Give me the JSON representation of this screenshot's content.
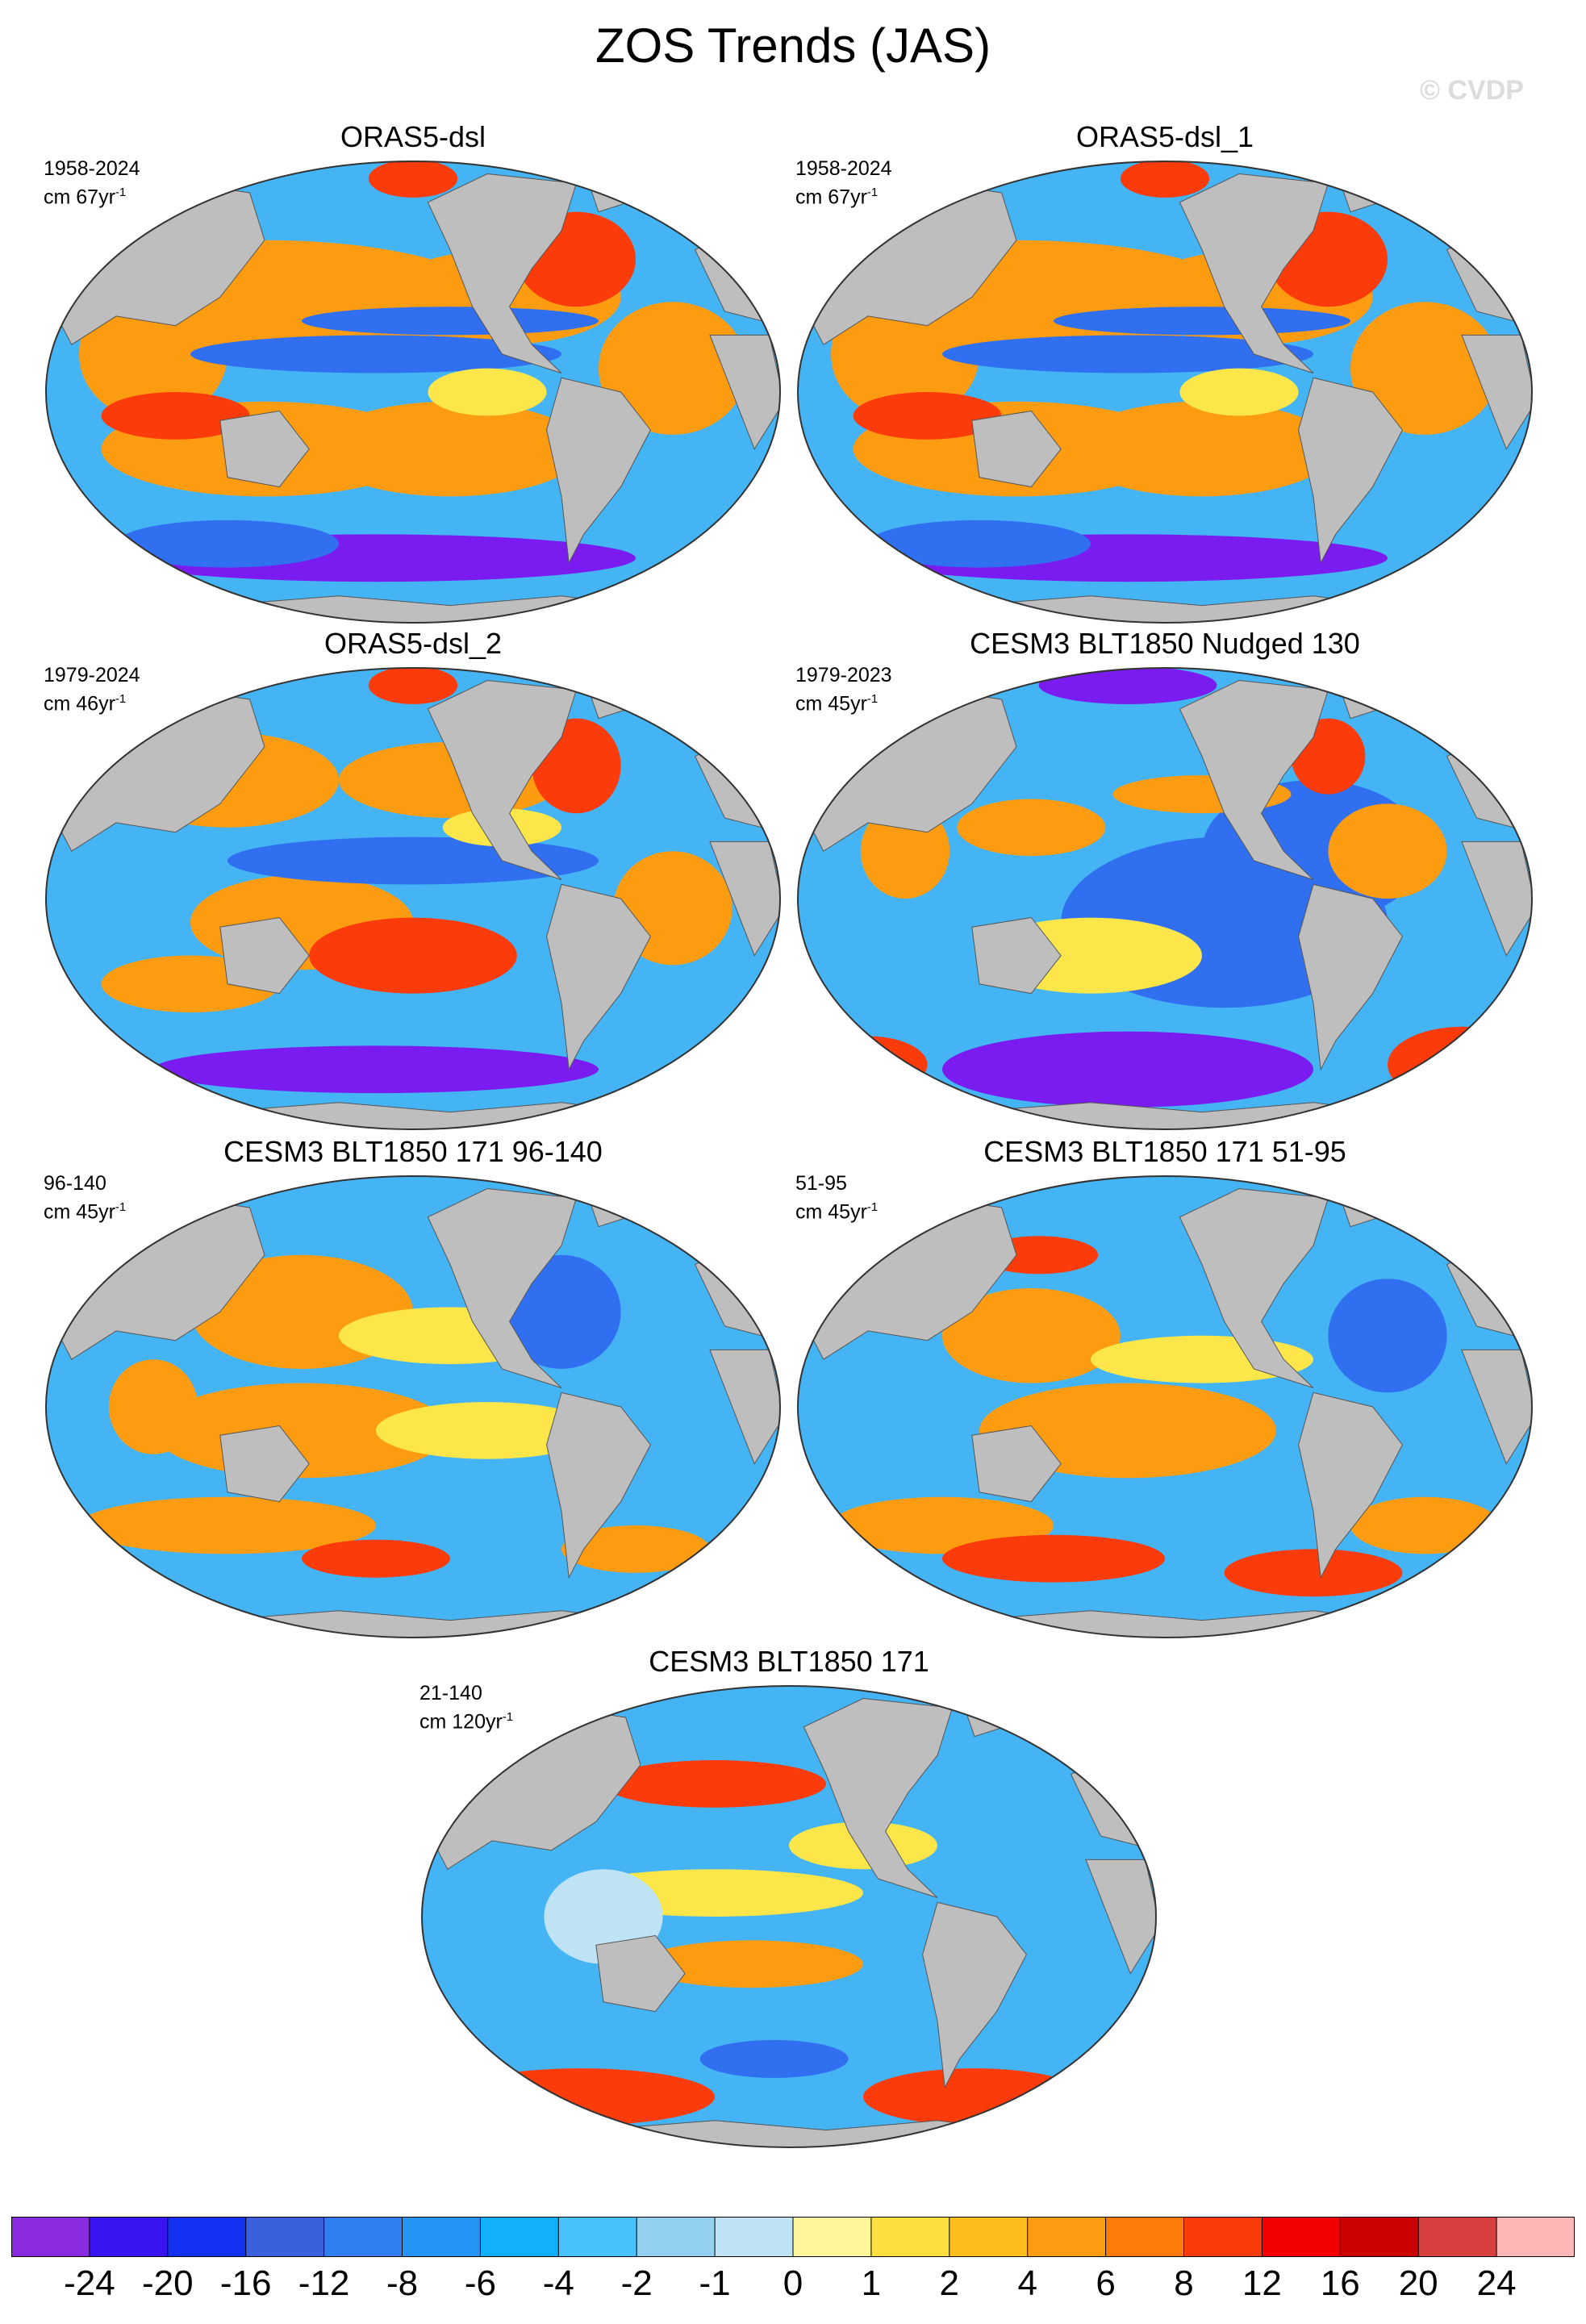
{
  "title": "ZOS Trends (JAS)",
  "watermark": "© CVDP",
  "ocean_colors": {
    "strong_neg": "#7a1cf0",
    "neg": "#2f6ff0",
    "weak_neg": "#45b4f5",
    "near_zero": "#bfe3f5",
    "weak_pos": "#fde64a",
    "pos": "#fd9c10",
    "strong_pos": "#fb3b0a",
    "extreme_pos": "#d90008",
    "land": "#bebebe",
    "ice": "#ffffff"
  },
  "panels": [
    {
      "title": "ORAS5-dsl",
      "period": "1958-2024",
      "units_prefix": "cm 67yr",
      "units_exp": "-1",
      "pattern": "oras"
    },
    {
      "title": "ORAS5-dsl_1",
      "period": "1958-2024",
      "units_prefix": "cm 67yr",
      "units_exp": "-1",
      "pattern": "oras"
    },
    {
      "title": "ORAS5-dsl_2",
      "period": "1979-2024",
      "units_prefix": "cm 46yr",
      "units_exp": "-1",
      "pattern": "oras2"
    },
    {
      "title": "CESM3 BLT1850 Nudged 130",
      "period": "1979-2023",
      "units_prefix": "cm 45yr",
      "units_exp": "-1",
      "pattern": "nudged"
    },
    {
      "title": "CESM3 BLT1850 171 96-140",
      "period": "96-140",
      "units_prefix": "cm 45yr",
      "units_exp": "-1",
      "pattern": "model_a"
    },
    {
      "title": "CESM3 BLT1850 171 51-95",
      "period": "51-95",
      "units_prefix": "cm 45yr",
      "units_exp": "-1",
      "pattern": "model_b"
    },
    {
      "title": "CESM3 BLT1850 171",
      "period": "21-140",
      "units_prefix": "cm 120yr",
      "units_exp": "-1",
      "pattern": "model_c"
    }
  ],
  "colorbar": {
    "colors": [
      "#8a2be2",
      "#3b14f2",
      "#1430f0",
      "#3a60dc",
      "#2f7ff0",
      "#2594f5",
      "#12b0fb",
      "#48c2f8",
      "#93d0f0",
      "#bfe3f5",
      "#fff59a",
      "#fde040",
      "#fdbe1c",
      "#fd9c10",
      "#fd7b0a",
      "#fb3b0a",
      "#f50000",
      "#cc0000",
      "#d84040",
      "#ffb6b6"
    ],
    "labels": [
      "-24",
      "-20",
      "-16",
      "-12",
      "-8",
      "-6",
      "-4",
      "-2",
      "-1",
      "0",
      "1",
      "2",
      "4",
      "6",
      "8",
      "12",
      "16",
      "20",
      "24"
    ]
  }
}
